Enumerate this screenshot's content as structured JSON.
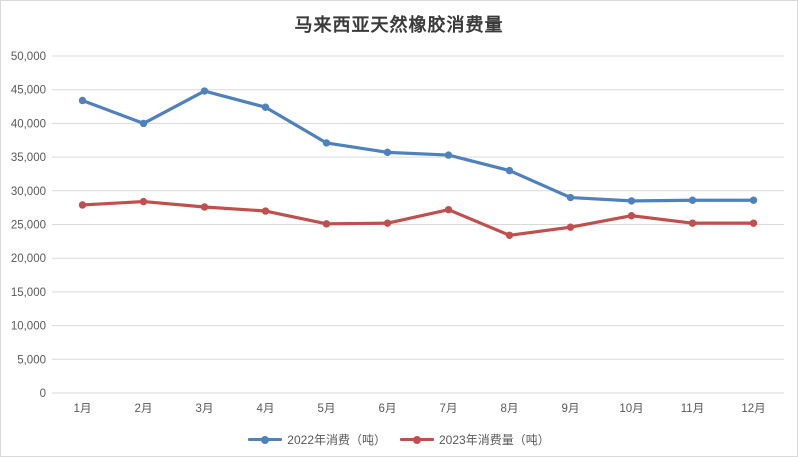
{
  "canvas": {
    "background": "#ffffff",
    "border_color": "#d9d9d9"
  },
  "chart_data": {
    "type": "line",
    "title": "马来西亚天然橡胶消费量",
    "categories": [
      "1月",
      "2月",
      "3月",
      "4月",
      "5月",
      "6月",
      "7月",
      "8月",
      "9月",
      "10月",
      "11月",
      "12月"
    ],
    "series": [
      {
        "name": "2022年消费（吨）",
        "color": "#4F81BD",
        "values": [
          43400,
          40000,
          44800,
          42400,
          37100,
          35700,
          35300,
          33000,
          29000,
          28500,
          28600,
          28600
        ]
      },
      {
        "name": "2023年消费量（吨）",
        "color": "#C0504D",
        "values": [
          27900,
          28400,
          27600,
          27000,
          25100,
          25200,
          27200,
          23400,
          24600,
          26300,
          25200,
          25200
        ]
      }
    ],
    "xlabel": "",
    "ylabel": "",
    "ylim": [
      0,
      50000
    ],
    "ytick_step": 5000,
    "ytick_labels": [
      "0",
      "5,000",
      "10,000",
      "15,000",
      "20,000",
      "25,000",
      "30,000",
      "35,000",
      "40,000",
      "45,000",
      "50,000"
    ],
    "grid": "horizontal",
    "grid_color": "#d9d9d9",
    "tick_color": "#595959",
    "legend_position": "bottom",
    "marker": "circle"
  }
}
